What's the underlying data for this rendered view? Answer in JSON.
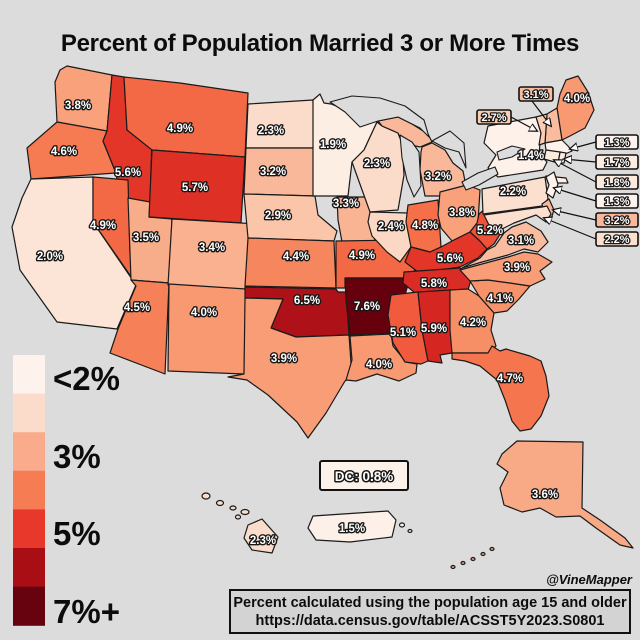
{
  "title": "Percent of Population Married 3 or More Times",
  "attribution": "@VineMapper",
  "dc_callout": {
    "label": "DC: 0.8%",
    "color": "#fdf2ea"
  },
  "source_box": {
    "line1": "Percent calculated using the population age 15 and older",
    "line2": "https://data.census.gov/table/ACSST5Y2023.S0801"
  },
  "legend": {
    "labels": [
      "<2%",
      "3%",
      "5%",
      "7%+"
    ],
    "ramp": [
      "#fdf2ec",
      "#fbdcca",
      "#f9ab8c",
      "#f67c54",
      "#e8382b",
      "#aa0e15",
      "#67030e"
    ]
  },
  "colors": {
    "background": "#dcdcdc",
    "water": "#dcdcdc",
    "border": "#1a1a1a",
    "footer_bg": "#d3d3d3"
  },
  "chart_data": {
    "type": "choropleth",
    "region": "United States",
    "metric": "Percent of population (age 15 and older) married 3 or more times",
    "unit": "%",
    "legend_range": [
      "<2%",
      "7%+"
    ],
    "states": [
      {
        "id": "WA",
        "value": 3.8,
        "label": "3.8%",
        "color": "#f8a17b"
      },
      {
        "id": "OR",
        "value": 4.6,
        "label": "4.6%",
        "color": "#f67b53"
      },
      {
        "id": "CA",
        "value": 2.0,
        "label": "2.0%",
        "color": "#fce5d7"
      },
      {
        "id": "ID",
        "value": 5.6,
        "label": "5.6%",
        "color": "#e33629"
      },
      {
        "id": "NV",
        "value": 4.9,
        "label": "4.9%",
        "color": "#f46945"
      },
      {
        "id": "UT",
        "value": 3.5,
        "label": "3.5%",
        "color": "#f8ad8a"
      },
      {
        "id": "AZ",
        "value": 4.5,
        "label": "4.5%",
        "color": "#f68158"
      },
      {
        "id": "MT",
        "value": 4.9,
        "label": "4.9%",
        "color": "#f46945"
      },
      {
        "id": "WY",
        "value": 5.7,
        "label": "5.7%",
        "color": "#df3026"
      },
      {
        "id": "CO",
        "value": 3.4,
        "label": "3.4%",
        "color": "#f9b190"
      },
      {
        "id": "NM",
        "value": 4.0,
        "label": "4.0%",
        "color": "#f89971"
      },
      {
        "id": "ND",
        "value": 2.3,
        "label": "2.3%",
        "color": "#fbdcca"
      },
      {
        "id": "SD",
        "value": 3.2,
        "label": "3.2%",
        "color": "#f9b899"
      },
      {
        "id": "NE",
        "value": 2.9,
        "label": "2.9%",
        "color": "#fac5a9"
      },
      {
        "id": "KS",
        "value": 4.4,
        "label": "4.4%",
        "color": "#f6865d"
      },
      {
        "id": "OK",
        "value": 6.5,
        "label": "6.5%",
        "color": "#ae1117"
      },
      {
        "id": "TX",
        "value": 3.9,
        "label": "3.9%",
        "color": "#f89d76"
      },
      {
        "id": "MN",
        "value": 1.9,
        "label": "1.9%",
        "color": "#fdeee4"
      },
      {
        "id": "IA",
        "value": 3.3,
        "label": "3.3%",
        "color": "#f9b494"
      },
      {
        "id": "MO",
        "value": 4.9,
        "label": "4.9%",
        "color": "#f46945"
      },
      {
        "id": "AR",
        "value": 7.6,
        "label": "7.6%",
        "color": "#67000d"
      },
      {
        "id": "LA",
        "value": 4.0,
        "label": "4.0%",
        "color": "#f89971"
      },
      {
        "id": "WI",
        "value": 2.3,
        "label": "2.3%",
        "color": "#fbdcca"
      },
      {
        "id": "IL",
        "value": 2.4,
        "label": "2.4%",
        "color": "#fbd8c4"
      },
      {
        "id": "MI",
        "value": 3.2,
        "label": "3.2%",
        "color": "#f9b899"
      },
      {
        "id": "IN",
        "value": 4.8,
        "label": "4.8%",
        "color": "#f56f49"
      },
      {
        "id": "OH",
        "value": 3.8,
        "label": "3.8%",
        "color": "#f8a17b"
      },
      {
        "id": "KY",
        "value": 5.6,
        "label": "5.6%",
        "color": "#e33629"
      },
      {
        "id": "TN",
        "value": 5.8,
        "label": "5.8%",
        "color": "#da2b24"
      },
      {
        "id": "MS",
        "value": 5.1,
        "label": "5.1%",
        "color": "#f15a3d"
      },
      {
        "id": "AL",
        "value": 5.9,
        "label": "5.9%",
        "color": "#d62622"
      },
      {
        "id": "GA",
        "value": 4.2,
        "label": "4.2%",
        "color": "#f78f66"
      },
      {
        "id": "FL",
        "value": 4.7,
        "label": "4.7%",
        "color": "#f5754e"
      },
      {
        "id": "SC",
        "value": 4.1,
        "label": "4.1%",
        "color": "#f7936a"
      },
      {
        "id": "NC",
        "value": 3.9,
        "label": "3.9%",
        "color": "#f89d76"
      },
      {
        "id": "VA",
        "value": 3.1,
        "label": "3.1%",
        "color": "#f9bc9e"
      },
      {
        "id": "WV",
        "value": 5.2,
        "label": "5.2%",
        "color": "#ef5238"
      },
      {
        "id": "PA",
        "value": 2.2,
        "label": "2.2%",
        "color": "#fbdfcf"
      },
      {
        "id": "NY",
        "value": 1.4,
        "label": "1.4%",
        "color": "#fdf1ea"
      },
      {
        "id": "ME",
        "value": 4.0,
        "label": "4.0%",
        "color": "#f89971"
      },
      {
        "id": "NH",
        "value": 3.1,
        "label": "3.1%",
        "color": "#f9bc9e"
      },
      {
        "id": "VT",
        "value": 2.7,
        "label": "2.7%",
        "color": "#facdb4"
      },
      {
        "id": "MA",
        "value": 1.3,
        "label": "1.3%",
        "color": "#fdf2ec"
      },
      {
        "id": "RI",
        "value": 1.7,
        "label": "1.7%",
        "color": "#fdece0"
      },
      {
        "id": "CT",
        "value": 1.8,
        "label": "1.8%",
        "color": "#fceadd"
      },
      {
        "id": "NJ",
        "value": 1.3,
        "label": "1.3%",
        "color": "#fdf2ec"
      },
      {
        "id": "DE",
        "value": 3.2,
        "label": "3.2%",
        "color": "#f9b899"
      },
      {
        "id": "MD",
        "value": 2.2,
        "label": "2.2%",
        "color": "#fbdfcf"
      },
      {
        "id": "AK",
        "value": 3.6,
        "label": "3.6%",
        "color": "#f8a985"
      },
      {
        "id": "HI",
        "value": 2.3,
        "label": "2.3%",
        "color": "#fbdcca"
      },
      {
        "id": "PR",
        "value": 1.5,
        "label": "1.5%",
        "color": "#fdf0e8"
      },
      {
        "id": "DC",
        "value": 0.8,
        "label": "0.8%",
        "color": "#fef4ee"
      }
    ]
  }
}
